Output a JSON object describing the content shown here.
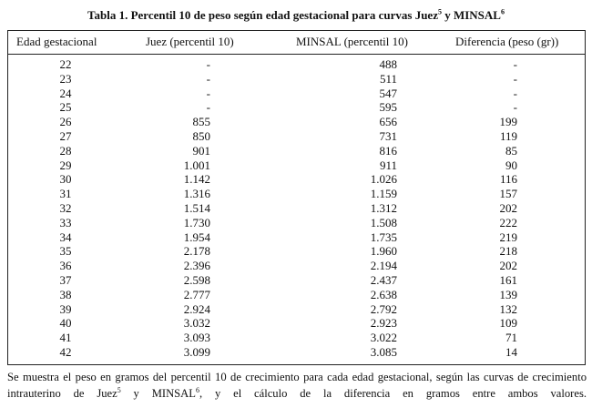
{
  "title": [
    "Tabla 1. Percentil 10 de peso según edad gestacional para curvas Juez",
    "5",
    " y MINSAL",
    "6"
  ],
  "table": {
    "header": [
      "Edad gestacional",
      "Juez (percentil 10)",
      "MINSAL (percentil 10)",
      "Diferencia (peso (gr))"
    ],
    "rows": [
      [
        "22",
        "-",
        "488",
        "-"
      ],
      [
        "23",
        "-",
        "511",
        "-"
      ],
      [
        "24",
        "-",
        "547",
        "-"
      ],
      [
        "25",
        "-",
        "595",
        "-"
      ],
      [
        "26",
        "855",
        "656",
        "199"
      ],
      [
        "27",
        "850",
        "731",
        "119"
      ],
      [
        "28",
        "901",
        "816",
        "85"
      ],
      [
        "29",
        "1.001",
        "911",
        "90"
      ],
      [
        "30",
        "1.142",
        "1.026",
        "116"
      ],
      [
        "31",
        "1.316",
        "1.159",
        "157"
      ],
      [
        "32",
        "1.514",
        "1.312",
        "202"
      ],
      [
        "33",
        "1.730",
        "1.508",
        "222"
      ],
      [
        "34",
        "1.954",
        "1.735",
        "219"
      ],
      [
        "35",
        "2.178",
        "1.960",
        "218"
      ],
      [
        "36",
        "2.396",
        "2.194",
        "202"
      ],
      [
        "37",
        "2.598",
        "2.437",
        "161"
      ],
      [
        "38",
        "2.777",
        "2.638",
        "139"
      ],
      [
        "39",
        "2.924",
        "2.792",
        "132"
      ],
      [
        "40",
        "3.032",
        "2.923",
        "109"
      ],
      [
        "41",
        "3.093",
        "3.022",
        "71"
      ],
      [
        "42",
        "3.099",
        "3.085",
        "14"
      ]
    ]
  },
  "footnote": [
    "Se muestra el peso en gramos del percentil 10 de crecimiento para cada edad gestacional, según las curvas de crecimiento intrauterino de Juez",
    "5",
    " y MINSAL",
    "6",
    ", y el cálculo de la diferencia en gramos entre ambos valores."
  ]
}
